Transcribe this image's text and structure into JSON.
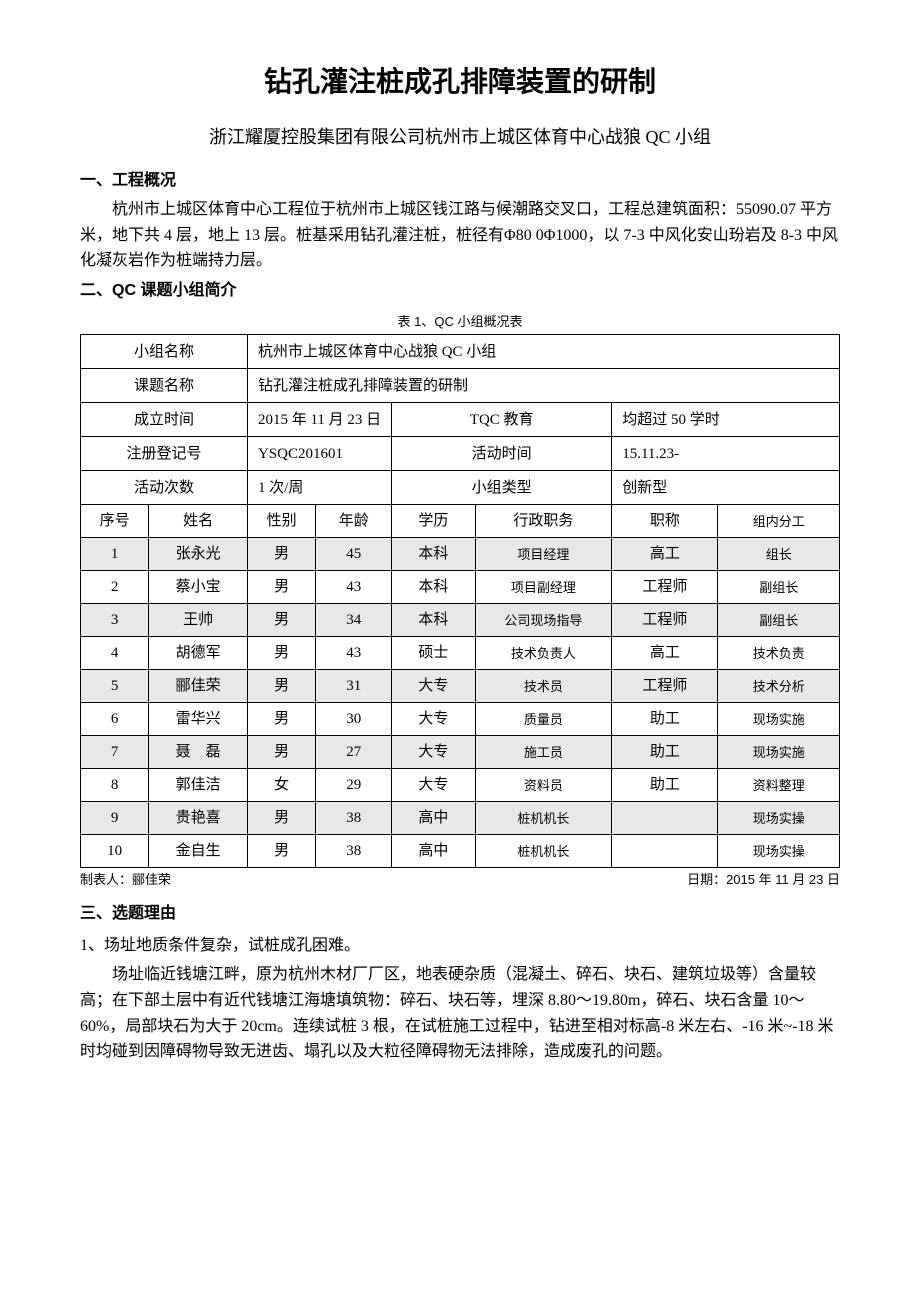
{
  "title": "钻孔灌注桩成孔排障装置的研制",
  "subtitle": "浙江耀厦控股集团有限公司杭州市上城区体育中心战狼 QC 小组",
  "section1": {
    "heading": "一、工程概况",
    "paragraph": "杭州市上城区体育中心工程位于杭州市上城区钱江路与候潮路交叉口，工程总建筑面积：55090.07 平方米，地下共 4 层，地上 13 层。桩基采用钻孔灌注桩，桩径有Φ80 0Φ1000，以 7-3 中风化安山玢岩及 8-3 中风化凝灰岩作为桩端持力层。"
  },
  "section2": {
    "heading": "二、QC 课题小组简介",
    "table_caption": "表 1、QC 小组概况表",
    "labels": {
      "group_name": "小组名称",
      "topic_name": "课题名称",
      "founded": "成立时间",
      "tqc_edu": "TQC 教育",
      "reg_no": "注册登记号",
      "activity_time": "活动时间",
      "activity_freq": "活动次数",
      "group_type": "小组类型"
    },
    "info": {
      "group_name": "杭州市上城区体育中心战狼 QC 小组",
      "topic_name": "钻孔灌注桩成孔排障装置的研制",
      "founded": "2015 年 11 月 23 日",
      "tqc_edu": "均超过 50 学时",
      "reg_no": "YSQC201601",
      "activity_time": "15.11.23-",
      "activity_freq": "1 次/周",
      "group_type": "创新型"
    },
    "member_headers": {
      "no": "序号",
      "name": "姓名",
      "gender": "性别",
      "age": "年龄",
      "edu": "学历",
      "position": "行政职务",
      "title": "职称",
      "role": "组内分工"
    },
    "members": [
      {
        "no": "1",
        "name": "张永光",
        "gender": "男",
        "age": "45",
        "edu": "本科",
        "position": "项目经理",
        "title": "高工",
        "role": "组长"
      },
      {
        "no": "2",
        "name": "蔡小宝",
        "gender": "男",
        "age": "43",
        "edu": "本科",
        "position": "项目副经理",
        "title": "工程师",
        "role": "副组长"
      },
      {
        "no": "3",
        "name": "王帅",
        "gender": "男",
        "age": "34",
        "edu": "本科",
        "position": "公司现场指导",
        "title": "工程师",
        "role": "副组长"
      },
      {
        "no": "4",
        "name": "胡德军",
        "gender": "男",
        "age": "43",
        "edu": "硕士",
        "position": "技术负责人",
        "title": "高工",
        "role": "技术负责"
      },
      {
        "no": "5",
        "name": "郦佳荣",
        "gender": "男",
        "age": "31",
        "edu": "大专",
        "position": "技术员",
        "title": "工程师",
        "role": "技术分析"
      },
      {
        "no": "6",
        "name": "雷华兴",
        "gender": "男",
        "age": "30",
        "edu": "大专",
        "position": "质量员",
        "title": "助工",
        "role": "现场实施"
      },
      {
        "no": "7",
        "name": "聂　磊",
        "gender": "男",
        "age": "27",
        "edu": "大专",
        "position": "施工员",
        "title": "助工",
        "role": "现场实施"
      },
      {
        "no": "8",
        "name": "郭佳洁",
        "gender": "女",
        "age": "29",
        "edu": "大专",
        "position": "资料员",
        "title": "助工",
        "role": "资料整理"
      },
      {
        "no": "9",
        "name": "贵艳喜",
        "gender": "男",
        "age": "38",
        "edu": "高中",
        "position": "桩机机长",
        "title": "",
        "role": "现场实操"
      },
      {
        "no": "10",
        "name": "金自生",
        "gender": "男",
        "age": "38",
        "edu": "高中",
        "position": "桩机机长",
        "title": "",
        "role": "现场实操"
      }
    ],
    "footer": {
      "creator": "制表人：郦佳荣",
      "date": "日期：2015 年 11 月 23 日"
    }
  },
  "section3": {
    "heading": "三、选题理由",
    "sub1": "1、场址地质条件复杂，试桩成孔困难。",
    "paragraph": "场址临近钱塘江畔，原为杭州木材厂厂区，地表硬杂质（混凝土、碎石、块石、建筑垃圾等）含量较高；在下部土层中有近代钱塘江海塘填筑物：碎石、块石等，埋深 8.80～19.80m，碎石、块石含量 10～60%，局部块石为大于 20cm。连续试桩 3 根，在试桩施工过程中，钻进至相对标高-8 米左右、-16 米~-18 米时均碰到因障碍物导致无进齿、塌孔以及大粒径障碍物无法排除，造成废孔的问题。"
  }
}
